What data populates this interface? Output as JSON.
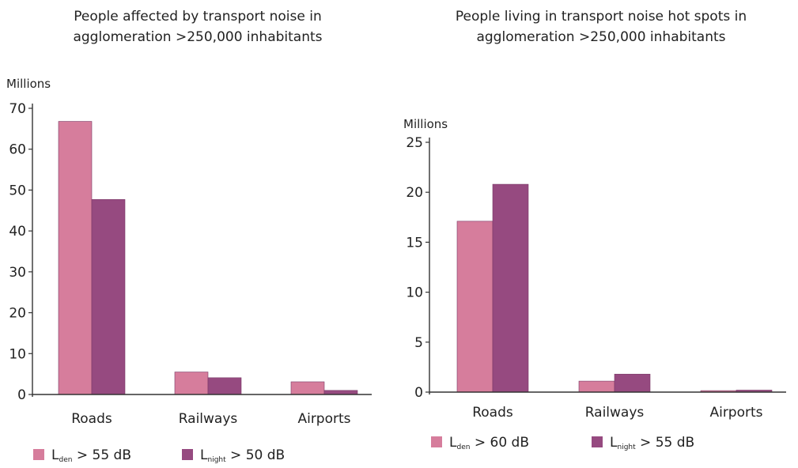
{
  "chart_data": [
    {
      "type": "bar",
      "title_line1": "People affected by transport noise in",
      "title_line2": "agglomeration >250,000 inhabitants",
      "ylabel": "Millions",
      "ylim": [
        0,
        70
      ],
      "yticks": [
        "0",
        "10",
        "20",
        "30",
        "40",
        "50",
        "60",
        "70"
      ],
      "categories": [
        "Roads",
        "Railways",
        "Airports"
      ],
      "series": [
        {
          "name": "Lden > 55 dB",
          "legend_base": "L",
          "legend_sub": "den",
          "legend_rest": " > 55 dB",
          "color": "#d67d9c",
          "values": [
            66.8,
            5.5,
            3.1
          ]
        },
        {
          "name": "Lnight > 50 dB",
          "legend_base": "L",
          "legend_sub": "night",
          "legend_rest": " > 50 dB",
          "color": "#964a80",
          "values": [
            47.7,
            4.1,
            1.0
          ]
        }
      ],
      "grid": false,
      "legend_position": "bottom-left"
    },
    {
      "type": "bar",
      "title_line1": "People living in transport noise hot spots  in",
      "title_line2": "agglomeration >250,000 inhabitants",
      "ylabel": "Millions",
      "ylim": [
        0,
        25
      ],
      "yticks": [
        "0",
        "5",
        "10",
        "15",
        "20",
        "25"
      ],
      "categories": [
        "Roads",
        "Railways",
        "Airports"
      ],
      "series": [
        {
          "name": "Lden > 60 dB",
          "legend_base": "L",
          "legend_sub": "den",
          "legend_rest": " > 60 dB",
          "color": "#d67d9c",
          "values": [
            17.1,
            1.1,
            0.15
          ]
        },
        {
          "name": "Lnight > 55 dB",
          "legend_base": "L",
          "legend_sub": "night",
          "legend_rest": " > 55 dB",
          "color": "#964a80",
          "values": [
            20.8,
            1.8,
            0.2
          ]
        }
      ],
      "grid": false,
      "legend_position": "bottom-left"
    }
  ]
}
